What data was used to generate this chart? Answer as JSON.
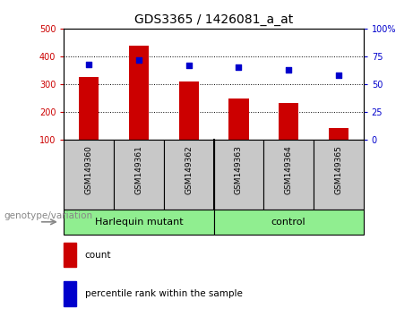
{
  "title": "GDS3365 / 1426081_a_at",
  "samples": [
    "GSM149360",
    "GSM149361",
    "GSM149362",
    "GSM149363",
    "GSM149364",
    "GSM149365"
  ],
  "counts": [
    325,
    438,
    308,
    248,
    232,
    140
  ],
  "percentile_ranks": [
    68,
    72,
    67,
    65,
    63,
    58
  ],
  "group_labels": [
    "Harlequin mutant",
    "control"
  ],
  "group_split": 3,
  "bar_color": "#CC0000",
  "dot_color": "#0000CC",
  "left_ylim": [
    100,
    500
  ],
  "right_ylim": [
    0,
    100
  ],
  "left_yticks": [
    100,
    200,
    300,
    400,
    500
  ],
  "right_yticks": [
    0,
    25,
    50,
    75,
    100
  ],
  "left_yticklabels": [
    "100",
    "200",
    "300",
    "400",
    "500"
  ],
  "right_yticklabels": [
    "0",
    "25",
    "50",
    "75",
    "100%"
  ],
  "xlabel": "genotype/variation",
  "legend_count": "count",
  "legend_pct": "percentile rank within the sample",
  "tick_bg_color": "#C8C8C8",
  "group_color": "#90EE90",
  "bar_bottom": 100,
  "bar_width": 0.4
}
